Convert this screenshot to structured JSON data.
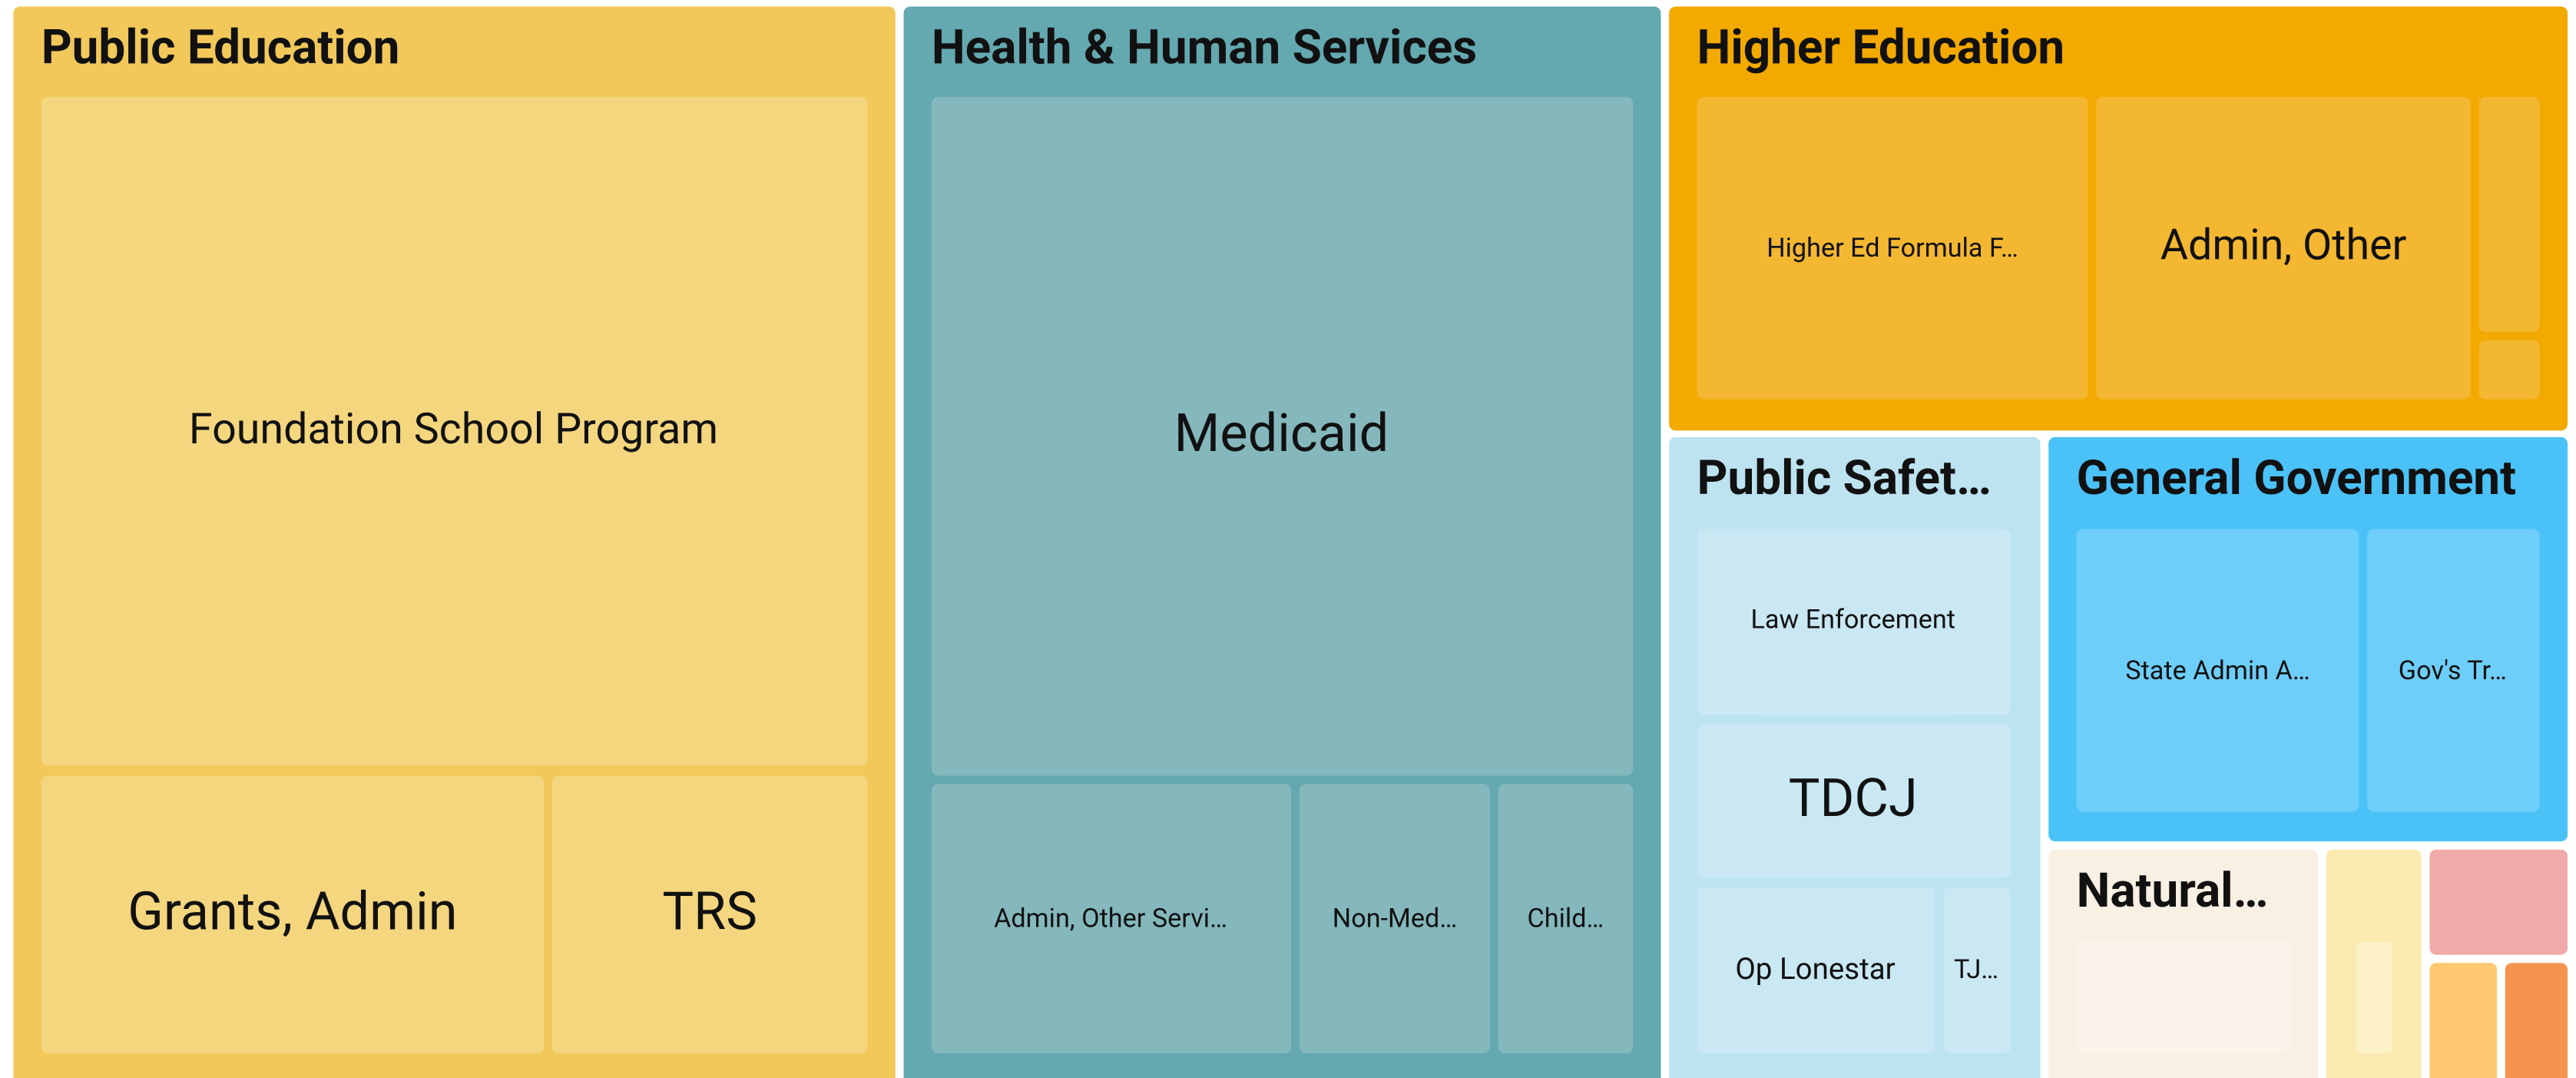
{
  "groups": [
    {
      "title": "Public Education",
      "children": [
        "Foundation School Program",
        "Grants, Admin",
        "TRS"
      ]
    },
    {
      "title": "Health & Human Services",
      "children": [
        "Medicaid",
        "Admin, Other Servi…",
        "Non-Med…",
        "Child…"
      ]
    },
    {
      "title": "Higher Education",
      "children": [
        "Higher Ed Formula F…",
        "Admin, Other"
      ]
    },
    {
      "title": "Public Safet…",
      "children": [
        "Law Enforcement",
        "TDCJ",
        "Op Lonestar",
        "TJ…"
      ]
    },
    {
      "title": "General Government",
      "children": [
        "State Admin A…",
        "Gov's Tr…"
      ]
    },
    {
      "title": "Natural…",
      "children": []
    }
  ]
}
